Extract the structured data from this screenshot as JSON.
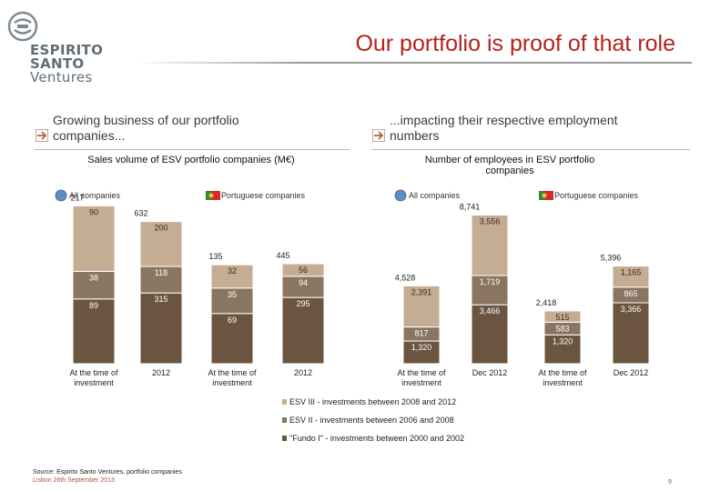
{
  "brand": {
    "line1": "ESPIRITO",
    "line2": "SANTO",
    "line3": "Ventures"
  },
  "page_title": "Our portfolio is proof of that role",
  "left_section": {
    "heading_line1": "Growing business of our portfolio",
    "heading_line2": "companies..."
  },
  "right_section": {
    "heading_line1": "...impacting their respective employment",
    "heading_line2": "numbers"
  },
  "colors": {
    "esv3": "#c4ad92",
    "esv2": "#8a7560",
    "fundo1": "#6b5440",
    "title_red": "#b5221d"
  },
  "legend": [
    "ESV III - investments between 2008 and 2012",
    "ESV II - investments between 2006 and 2008",
    "\"Fundo I\" - investments between 2000 and 2002"
  ],
  "footer": {
    "source": "Source: Espirito Santo Ventures, portfolio companies",
    "date": "Lisbon 26th September 2013",
    "page": "9"
  },
  "chart_data": [
    {
      "type": "bar",
      "title": "Sales volume of ESV portfolio companies (M€)",
      "stacked": true,
      "groups": [
        "All companies",
        "Portuguese companies"
      ],
      "categories": [
        "At the time of investment",
        "2012",
        "At the time of investment",
        "2012"
      ],
      "totals": [
        "217",
        "632",
        "135",
        "445"
      ],
      "series": [
        {
          "name": "\"Fundo I\" - investments between 2000 and 2002",
          "values": [
            89,
            315,
            69,
            295
          ]
        },
        {
          "name": "ESV II - investments between 2006 and 2008",
          "values": [
            38,
            118,
            35,
            94
          ]
        },
        {
          "name": "ESV III - investments between 2008 and 2012",
          "values": [
            90,
            200,
            32,
            56
          ]
        }
      ],
      "value_labels": [
        [
          "89",
          "315",
          "69",
          "295"
        ],
        [
          "38",
          "118",
          "35",
          "94"
        ],
        [
          "90",
          "200",
          "32",
          "56"
        ]
      ]
    },
    {
      "type": "bar",
      "title": "Number of employees in ESV portfolio companies",
      "stacked": true,
      "groups": [
        "All companies",
        "Portuguese companies"
      ],
      "categories": [
        "At the time of investment",
        "Dec 2012",
        "At the time of investment",
        "Dec 2012"
      ],
      "totals": [
        "4,528",
        "8,741",
        "2,418",
        "5,396"
      ],
      "series": [
        {
          "name": "\"Fundo I\" - investments between 2000 and 2002",
          "values": [
            1320,
            3466,
            1320,
            3366
          ]
        },
        {
          "name": "ESV II - investments between 2006 and 2008",
          "values": [
            817,
            1719,
            583,
            865
          ]
        },
        {
          "name": "ESV III - investments between 2008 and 2012",
          "values": [
            2391,
            3556,
            515,
            1165
          ]
        }
      ],
      "value_labels": [
        [
          "1,320",
          "3,466",
          "1,320",
          "3,366"
        ],
        [
          "817",
          "1,719",
          "583",
          "865"
        ],
        [
          "2,391",
          "3,556",
          "515",
          "1,165"
        ]
      ]
    }
  ]
}
